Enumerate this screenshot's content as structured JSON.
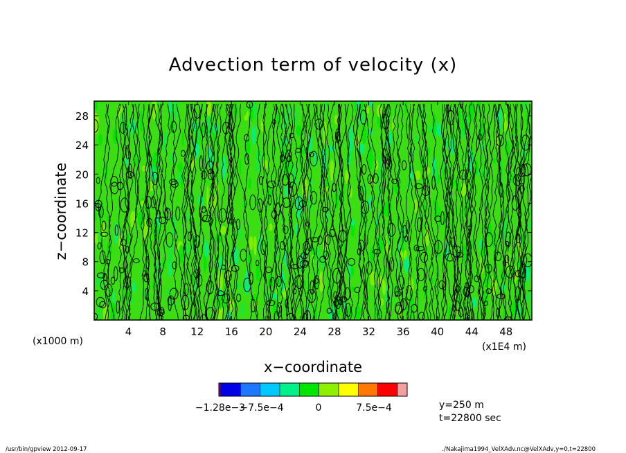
{
  "chart_data": {
    "type": "heatmap",
    "title": "Advection term of velocity (x)",
    "xlabel": "x−coordinate",
    "ylabel": "z−coordinate",
    "x_unit_left": "(x1000 m)",
    "x_unit_right": "(x1E4 m)",
    "xlim": [
      0,
      51
    ],
    "ylim": [
      0,
      30
    ],
    "xticks": [
      4,
      8,
      12,
      16,
      20,
      24,
      28,
      32,
      36,
      40,
      44,
      48
    ],
    "yticks": [
      4,
      8,
      12,
      16,
      20,
      24,
      28
    ],
    "colorbar": {
      "colors": [
        "#7a00b4",
        "#0000e6",
        "#1e78ff",
        "#00c8ff",
        "#00f08c",
        "#00e600",
        "#8cf000",
        "#ffff00",
        "#ff7800",
        "#ff0000",
        "#f4a0a0"
      ],
      "labels": [
        "−1.28e−3",
        "−7.5e−4",
        "0",
        "7.5e−4"
      ]
    },
    "info": [
      "y=250 m",
      "t=22800 sec"
    ]
  },
  "footer": {
    "left": "/usr/bin/gpview  2012-09-17",
    "right": "./Nakajima1994_VelXAdv.nc@VelXAdv,y=0,t=22800"
  }
}
